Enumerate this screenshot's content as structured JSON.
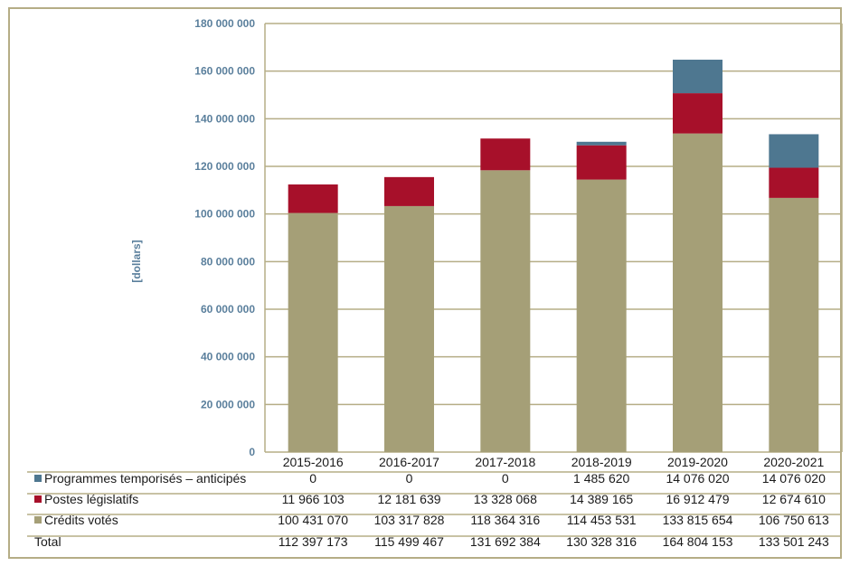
{
  "chart_data": {
    "type": "bar",
    "stacked": true,
    "title": "",
    "xlabel": "",
    "ylabel": "[dollars]",
    "ylim": [
      0,
      180000000
    ],
    "ytick_step": 20000000,
    "yticks": [
      "0",
      "20 000 000",
      "40 000 000",
      "60 000 000",
      "80 000 000",
      "100 000 000",
      "120 000 000",
      "140 000 000",
      "160 000 000",
      "180 000 000"
    ],
    "categories": [
      "2015-2016",
      "2016-2017",
      "2017-2018",
      "2018-2019",
      "2019-2020",
      "2020-2021"
    ],
    "series": [
      {
        "name": "Crédits votés",
        "color": "#a59f77",
        "values": [
          100431070,
          103317828,
          118364316,
          114453531,
          133815654,
          106750613
        ],
        "labels": [
          "100 431 070",
          "103 317 828",
          "118 364 316",
          "114 453 531",
          "133 815 654",
          "106 750 613"
        ]
      },
      {
        "name": "Postes législatifs",
        "color": "#a7102a",
        "values": [
          11966103,
          12181639,
          13328068,
          14389165,
          16912479,
          12674610
        ],
        "labels": [
          "11 966 103",
          "12 181 639",
          "13 328 068",
          "14 389 165",
          "16 912 479",
          "12 674 610"
        ]
      },
      {
        "name": "Programmes temporisés – anticipés",
        "color": "#4e7790",
        "values": [
          0,
          0,
          0,
          1485620,
          14076020,
          14076020
        ],
        "labels": [
          "0",
          "0",
          "0",
          "1 485 620",
          "14 076 020",
          "14 076 020"
        ]
      }
    ],
    "table_rows": [
      {
        "label": "Programmes temporisés – anticipés",
        "series_index": 2
      },
      {
        "label": "Postes législatifs",
        "series_index": 1
      },
      {
        "label": "Crédits votés",
        "series_index": 0
      }
    ],
    "total": {
      "label": "Total",
      "labels": [
        "112 397 173",
        "115 499 467",
        "131 692 384",
        "130 328 316",
        "164 804 153",
        "133 501 243"
      ]
    },
    "grid": true,
    "gridline_color": "#b5ad86"
  }
}
